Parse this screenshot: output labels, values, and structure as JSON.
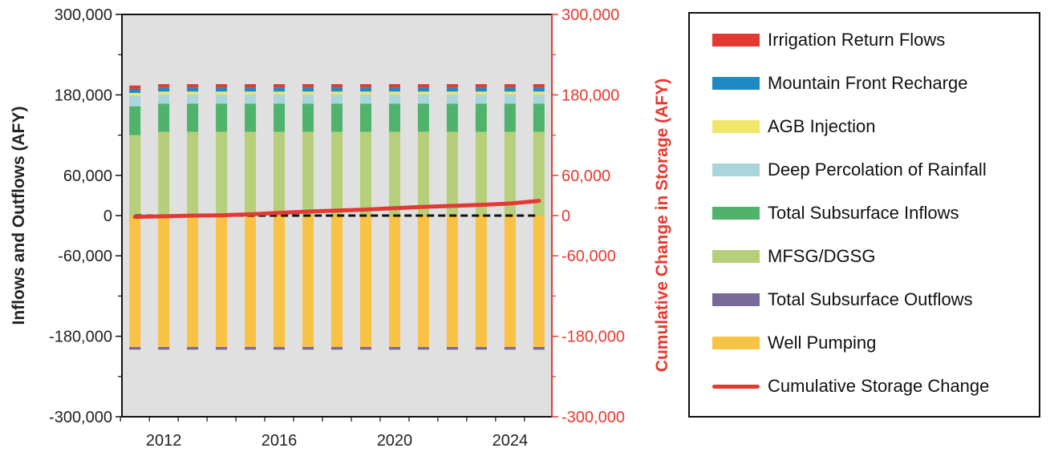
{
  "chart_data": {
    "type": "bar",
    "subtype": "stacked-bar-with-line",
    "xlabel": "",
    "ylabel": "Inflows and Outflows (AFY)",
    "y2label": "Cumulative Change in Storage (AFY)",
    "ylim": [
      -300000,
      300000
    ],
    "y2lim": [
      -300000,
      300000
    ],
    "yticks": [
      "300,000",
      "180,000",
      "60,000",
      "0",
      "-60,000",
      "-180,000",
      "-300,000"
    ],
    "y2ticks": [
      "300,000",
      "180,000",
      "60,000",
      "0",
      "-60,000",
      "-180,000",
      "-300,000"
    ],
    "xticks": [
      "2012",
      "2016",
      "2020",
      "2024"
    ],
    "x": [
      2011,
      2012,
      2013,
      2014,
      2015,
      2016,
      2017,
      2018,
      2019,
      2020,
      2021,
      2022,
      2023,
      2024,
      2025
    ],
    "grid": false,
    "legend_position": "right",
    "series": [
      {
        "name": "MFSG/DGSG",
        "color": "#b5cf7a",
        "values": [
          120000,
          125000,
          125000,
          125000,
          125000,
          125000,
          125000,
          125000,
          125000,
          125000,
          125000,
          125000,
          125000,
          125000,
          125000
        ]
      },
      {
        "name": "Total Subsurface Inflows",
        "color": "#4fb36b",
        "values": [
          43000,
          42000,
          42000,
          42000,
          42000,
          42000,
          42000,
          42000,
          42000,
          42000,
          42000,
          42000,
          42000,
          42000,
          42000
        ]
      },
      {
        "name": "Deep Percolation of Rainfall",
        "color": "#a9d6dc",
        "values": [
          16000,
          14000,
          14000,
          14000,
          14000,
          14000,
          14000,
          14000,
          14000,
          14000,
          14000,
          14000,
          14000,
          14000,
          14000
        ]
      },
      {
        "name": "AGB Injection",
        "color": "#f1e56a",
        "values": [
          4000,
          4000,
          4000,
          4000,
          4000,
          4000,
          4000,
          4000,
          4000,
          4000,
          4000,
          4000,
          4000,
          4000,
          4000
        ]
      },
      {
        "name": "Mountain Front Recharge",
        "color": "#1e8ac4",
        "values": [
          6000,
          6000,
          6000,
          6000,
          6000,
          6000,
          6000,
          6000,
          6000,
          6000,
          6000,
          6000,
          6000,
          6000,
          6000
        ]
      },
      {
        "name": "Irrigation Return Flows",
        "color": "#e23a32",
        "values": [
          5000,
          5000,
          5000,
          5000,
          5000,
          5000,
          5000,
          5000,
          5000,
          5000,
          5000,
          5000,
          5000,
          5000,
          5000
        ]
      },
      {
        "name": "Well Pumping",
        "color": "#f8c244",
        "values": [
          -196000,
          -196000,
          -196000,
          -196000,
          -196000,
          -196000,
          -196000,
          -196000,
          -196000,
          -196000,
          -196000,
          -196000,
          -196000,
          -196000,
          -196000
        ]
      },
      {
        "name": "Total Subsurface Outflows",
        "color": "#7a6a99",
        "values": [
          -4000,
          -4000,
          -4000,
          -4000,
          -4000,
          -4000,
          -4000,
          -4000,
          -4000,
          -4000,
          -4000,
          -4000,
          -4000,
          -4000,
          -4000
        ]
      }
    ],
    "line_series": {
      "name": "Cumulative Storage Change",
      "color": "#e23a32",
      "values": [
        -2000,
        -1000,
        0,
        500,
        2000,
        4000,
        6000,
        7500,
        9000,
        11000,
        13000,
        14500,
        16000,
        18000,
        22000
      ]
    },
    "zero_line": {
      "style": "dashed",
      "color": "#111111",
      "value": 0
    }
  },
  "legend": {
    "order": [
      "Irrigation Return Flows",
      "Mountain Front Recharge",
      "AGB Injection",
      "Deep Percolation of Rainfall",
      "Total Subsurface Inflows",
      "MFSG/DGSG",
      "Total Subsurface Outflows",
      "Well Pumping",
      "Cumulative Storage Change"
    ]
  }
}
